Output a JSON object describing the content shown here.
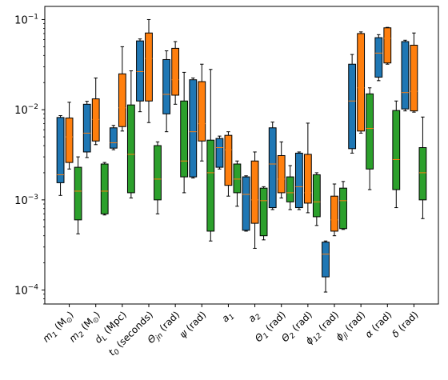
{
  "chart_data": {
    "type": "box",
    "title": "",
    "xlabel": "",
    "ylabel": "",
    "y_scale": "log",
    "ylim": [
      7e-05,
      0.14
    ],
    "y_ticks": [
      {
        "value": 0.0001,
        "base": "10",
        "exp": "−4"
      },
      {
        "value": 0.001,
        "base": "10",
        "exp": "−3"
      },
      {
        "value": 0.01,
        "base": "10",
        "exp": "−2"
      },
      {
        "value": 0.1,
        "base": "10",
        "exp": "−1"
      }
    ],
    "grid": false,
    "legend": "none",
    "series_colors": [
      "#1f77b4",
      "#ff7f0e",
      "#2ca02c"
    ],
    "median_color": "#ff7f0e",
    "categories": [
      {
        "sym": "m",
        "sub": "1",
        "rest": " (M",
        "rest_sub": "⊙",
        "tail": ")"
      },
      {
        "sym": "m",
        "sub": "2",
        "rest": " (M",
        "rest_sub": "⊙",
        "tail": ")"
      },
      {
        "sym": "d",
        "sub": "L",
        "rest": " (Mpc)",
        "rest_sub": "",
        "tail": ""
      },
      {
        "sym": "t",
        "sub": "0",
        "rest": " (seconds)",
        "rest_sub": "",
        "tail": ""
      },
      {
        "sym": "Θ",
        "sub": "jn",
        "rest": " (rad)",
        "rest_sub": "",
        "tail": ""
      },
      {
        "sym": "ψ",
        "sub": "",
        "rest": " (rad)",
        "rest_sub": "",
        "tail": ""
      },
      {
        "sym": "a",
        "sub": "1",
        "rest": "",
        "rest_sub": "",
        "tail": ""
      },
      {
        "sym": "a",
        "sub": "2",
        "rest": "",
        "rest_sub": "",
        "tail": ""
      },
      {
        "sym": "Θ",
        "sub": "1",
        "rest": " (rad)",
        "rest_sub": "",
        "tail": ""
      },
      {
        "sym": "Θ",
        "sub": "2",
        "rest": " (rad)",
        "rest_sub": "",
        "tail": ""
      },
      {
        "sym": "ϕ",
        "sub": "12",
        "rest": " (rad)",
        "rest_sub": "",
        "tail": ""
      },
      {
        "sym": "ϕ",
        "sub": "jl",
        "rest": " (rad)",
        "rest_sub": "",
        "tail": ""
      },
      {
        "sym": "α",
        "sub": "",
        "rest": " (rad)",
        "rest_sub": "",
        "tail": ""
      },
      {
        "sym": "δ",
        "sub": "",
        "rest": " (rad)",
        "rest_sub": "",
        "tail": ""
      }
    ],
    "series": [
      {
        "boxes": [
          {
            "whislo": 0.00112,
            "q1": 0.00155,
            "med": 0.0019,
            "q3": 0.0082,
            "whishi": 0.0086
          },
          {
            "whislo": 0.00295,
            "q1": 0.0034,
            "med": 0.0055,
            "q3": 0.0115,
            "whishi": 0.0124
          },
          {
            "whislo": 0.0036,
            "q1": 0.00375,
            "med": 0.0043,
            "q3": 0.0063,
            "whishi": 0.0067
          },
          {
            "whislo": 0.0095,
            "q1": 0.0125,
            "med": 0.0265,
            "q3": 0.058,
            "whishi": 0.061
          },
          {
            "whislo": 0.0057,
            "q1": 0.009,
            "med": 0.0148,
            "q3": 0.036,
            "whishi": 0.045
          },
          {
            "whislo": 0.00175,
            "q1": 0.0018,
            "med": 0.0057,
            "q3": 0.0215,
            "whishi": 0.0225
          },
          {
            "whislo": 0.0022,
            "q1": 0.0023,
            "med": 0.0038,
            "q3": 0.0048,
            "whishi": 0.0051
          },
          {
            "whislo": 0.00045,
            "q1": 0.00046,
            "med": 0.00115,
            "q3": 0.0018,
            "whishi": 0.00185
          },
          {
            "whislo": 0.00078,
            "q1": 0.00082,
            "med": 0.0025,
            "q3": 0.0063,
            "whishi": 0.0073
          },
          {
            "whislo": 0.00078,
            "q1": 0.00082,
            "med": 0.0014,
            "q3": 0.0033,
            "whishi": 0.0034
          },
          {
            "whislo": 9.5e-05,
            "q1": 0.00014,
            "med": 0.00025,
            "q3": 0.00034,
            "whishi": 0.00035
          },
          {
            "whislo": 0.0033,
            "q1": 0.0037,
            "med": 0.0125,
            "q3": 0.032,
            "whishi": 0.041
          },
          {
            "whislo": 0.021,
            "q1": 0.023,
            "med": 0.0425,
            "q3": 0.063,
            "whishi": 0.068
          },
          {
            "whislo": 0.0097,
            "q1": 0.0102,
            "med": 0.0155,
            "q3": 0.057,
            "whishi": 0.059
          }
        ]
      },
      {
        "boxes": [
          {
            "whislo": 0.0022,
            "q1": 0.0026,
            "med": 0.005,
            "q3": 0.0081,
            "whishi": 0.0121
          },
          {
            "whislo": 0.0041,
            "q1": 0.0045,
            "med": 0.0078,
            "q3": 0.0132,
            "whishi": 0.0225
          },
          {
            "whislo": 0.0058,
            "q1": 0.0065,
            "med": 0.0105,
            "q3": 0.025,
            "whishi": 0.05
          },
          {
            "whislo": 0.0072,
            "q1": 0.0125,
            "med": 0.037,
            "q3": 0.071,
            "whishi": 0.1
          },
          {
            "whislo": 0.0115,
            "q1": 0.0145,
            "med": 0.0215,
            "q3": 0.048,
            "whishi": 0.057
          },
          {
            "whislo": 0.0027,
            "q1": 0.0045,
            "med": 0.007,
            "q3": 0.0205,
            "whishi": 0.032
          },
          {
            "whislo": 0.0011,
            "q1": 0.00145,
            "med": 0.0036,
            "q3": 0.0052,
            "whishi": 0.0057
          },
          {
            "whislo": 0.00029,
            "q1": 0.00055,
            "med": 0.001,
            "q3": 0.0027,
            "whishi": 0.0034
          },
          {
            "whislo": 0.00105,
            "q1": 0.0012,
            "med": 0.0017,
            "q3": 0.0031,
            "whishi": 0.0044
          },
          {
            "whislo": 0.00072,
            "q1": 0.00092,
            "med": 0.0012,
            "q3": 0.0032,
            "whishi": 0.0071
          },
          {
            "whislo": 0.0004,
            "q1": 0.00045,
            "med": 0.0006,
            "q3": 0.0011,
            "whishi": 0.0015
          },
          {
            "whislo": 0.0055,
            "q1": 0.0058,
            "med": 0.0175,
            "q3": 0.07,
            "whishi": 0.073
          },
          {
            "whislo": 0.032,
            "q1": 0.033,
            "med": 0.062,
            "q3": 0.081,
            "whishi": 0.082
          },
          {
            "whislo": 0.0094,
            "q1": 0.0097,
            "med": 0.016,
            "q3": 0.052,
            "whishi": 0.071
          }
        ]
      },
      {
        "boxes": [
          {
            "whislo": 0.00042,
            "q1": 0.0006,
            "med": 0.00125,
            "q3": 0.0023,
            "whishi": 0.003
          },
          {
            "whislo": 0.00068,
            "q1": 0.0007,
            "med": 0.00125,
            "q3": 0.0025,
            "whishi": 0.0026
          },
          {
            "whislo": 0.00105,
            "q1": 0.0012,
            "med": 0.0032,
            "q3": 0.0113,
            "whishi": 0.027
          },
          {
            "whislo": 0.0007,
            "q1": 0.001,
            "med": 0.0017,
            "q3": 0.004,
            "whishi": 0.0044
          },
          {
            "whislo": 0.0012,
            "q1": 0.0018,
            "med": 0.0027,
            "q3": 0.0125,
            "whishi": 0.026
          },
          {
            "whislo": 0.00035,
            "q1": 0.00045,
            "med": 0.002,
            "q3": 0.0046,
            "whishi": 0.028
          },
          {
            "whislo": 0.00085,
            "q1": 0.0012,
            "med": 0.0017,
            "q3": 0.0025,
            "whishi": 0.0027
          },
          {
            "whislo": 0.00036,
            "q1": 0.0004,
            "med": 0.00098,
            "q3": 0.00135,
            "whishi": 0.0014
          },
          {
            "whislo": 0.00078,
            "q1": 0.00095,
            "med": 0.0012,
            "q3": 0.0018,
            "whishi": 0.0024
          },
          {
            "whislo": 0.00052,
            "q1": 0.00065,
            "med": 0.00095,
            "q3": 0.0019,
            "whishi": 0.002
          },
          {
            "whislo": 0.00047,
            "q1": 0.00048,
            "med": 0.00098,
            "q3": 0.00135,
            "whishi": 0.0016
          },
          {
            "whislo": 0.0013,
            "q1": 0.0022,
            "med": 0.0062,
            "q3": 0.015,
            "whishi": 0.0175
          },
          {
            "whislo": 0.00082,
            "q1": 0.0013,
            "med": 0.0028,
            "q3": 0.0098,
            "whishi": 0.0125
          },
          {
            "whislo": 0.00062,
            "q1": 0.001,
            "med": 0.002,
            "q3": 0.0038,
            "whishi": 0.0083
          }
        ]
      }
    ]
  }
}
